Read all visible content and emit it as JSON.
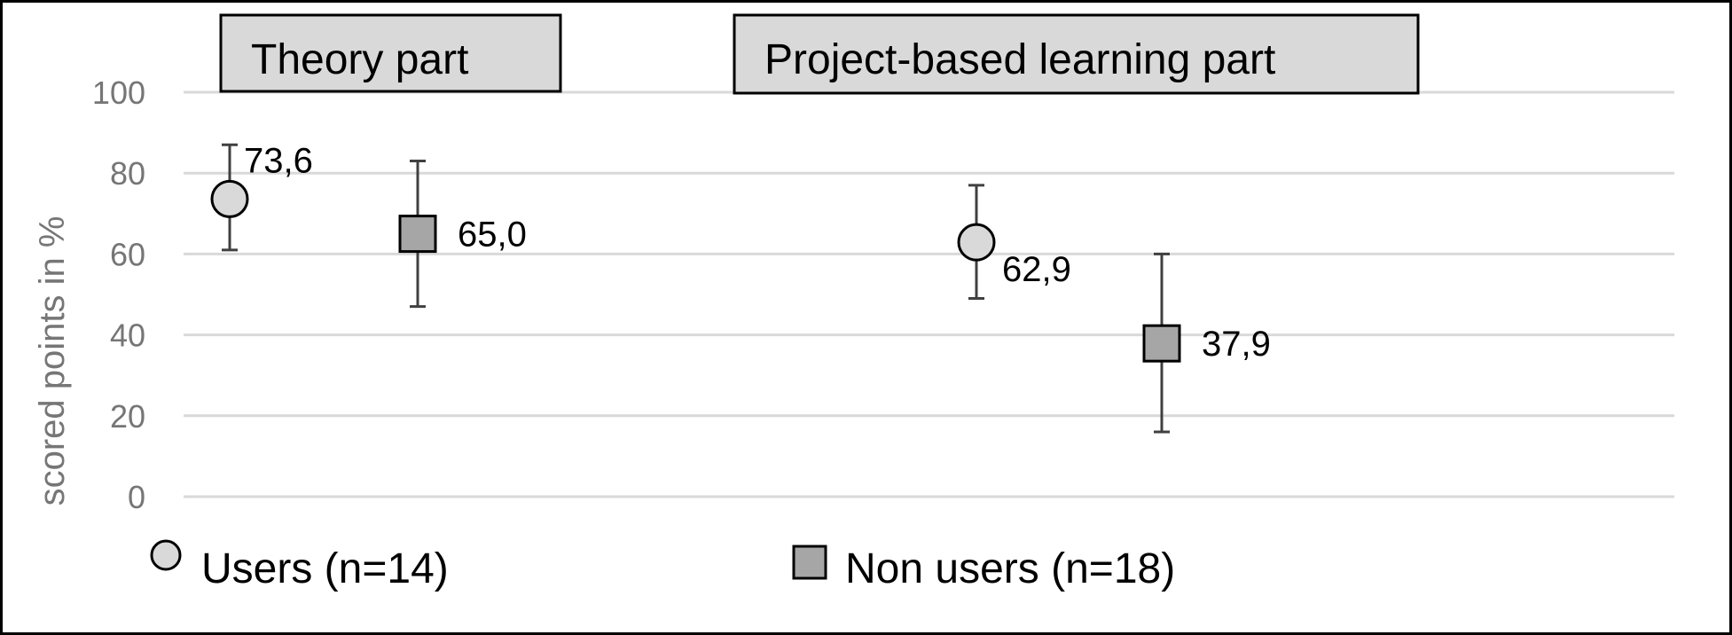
{
  "chart_data": {
    "type": "scatter",
    "title": "",
    "xlabel": "",
    "ylabel": "scored points in %",
    "ylim": [
      0,
      100
    ],
    "yticks": [
      0,
      20,
      40,
      60,
      80,
      100
    ],
    "grid": true,
    "legend_position": "bottom",
    "sections": [
      "Theory part",
      "Project-based learning part"
    ],
    "series": [
      {
        "name": "Users (n=14)",
        "marker": "circle",
        "color": "#d9d9d9",
        "points": [
          {
            "section": "Theory part",
            "value": 73.6,
            "label": "73,6",
            "error_low": 61,
            "error_high": 87
          },
          {
            "section": "Project-based learning part",
            "value": 62.9,
            "label": "62,9",
            "error_low": 49,
            "error_high": 77
          }
        ]
      },
      {
        "name": "Non users (n=18)",
        "marker": "square",
        "color": "#a6a6a6",
        "points": [
          {
            "section": "Theory part",
            "value": 65.0,
            "label": "65,0",
            "error_low": 47,
            "error_high": 83
          },
          {
            "section": "Project-based learning part",
            "value": 37.9,
            "label": "37,9",
            "error_low": 16,
            "error_high": 60
          }
        ]
      }
    ]
  }
}
